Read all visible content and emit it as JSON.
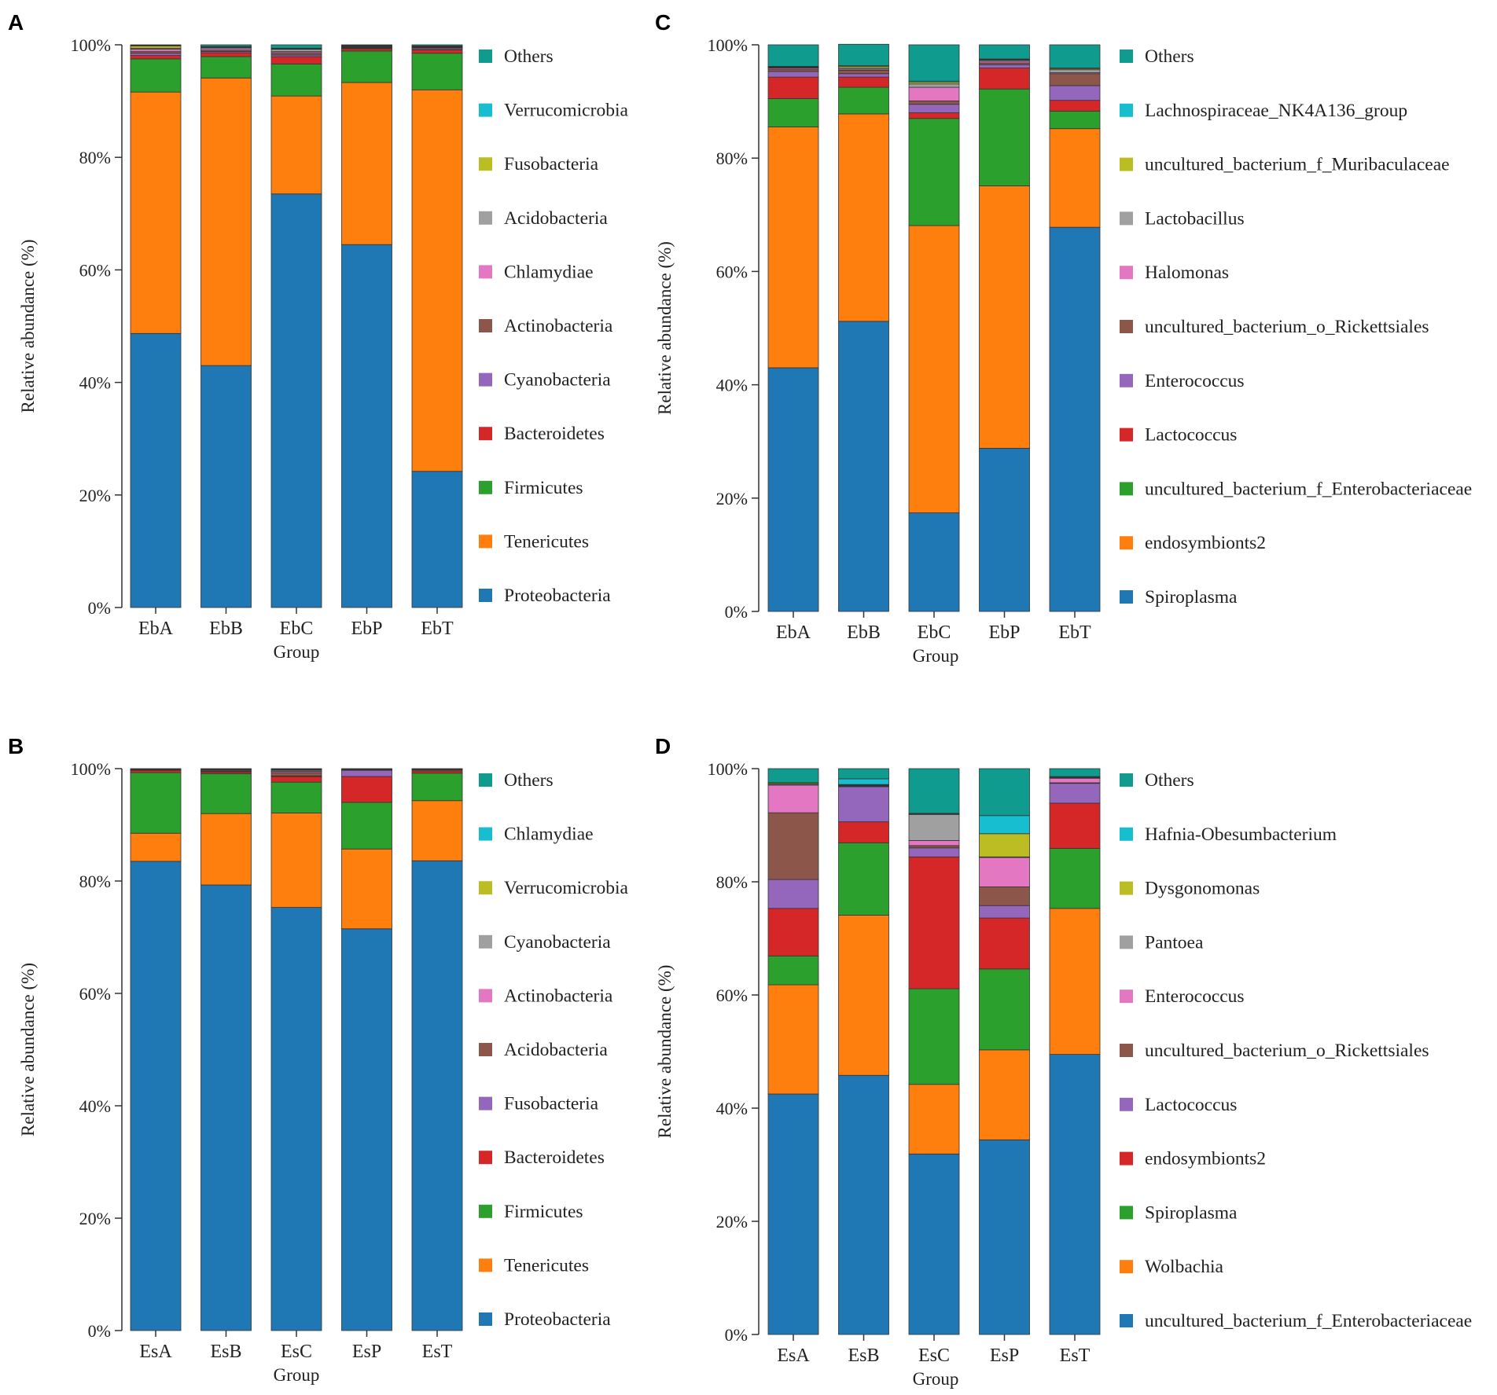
{
  "figure": {
    "panels": [
      "A",
      "B",
      "C",
      "D"
    ]
  },
  "colors": {
    "c0": "#1f77b4",
    "c1": "#ff7f0e",
    "c2": "#2ca02c",
    "c3": "#d62728",
    "c4": "#9467bd",
    "c5": "#8c564b",
    "c6": "#e377c2",
    "c7": "#a0a0a0",
    "c8": "#bcbd22",
    "c9": "#17becf",
    "c10": "#0f9b8e"
  },
  "chart_data": [
    {
      "panel": "A",
      "type": "bar",
      "stacked": true,
      "title": "",
      "xlabel": "Group",
      "ylabel": "Relative abundance (%)",
      "ylim": [
        0,
        100
      ],
      "yticks": [
        "0%",
        "20%",
        "40%",
        "60%",
        "80%",
        "100%"
      ],
      "categories": [
        "EbA",
        "EbB",
        "EbC",
        "EbP",
        "EbT"
      ],
      "series": [
        {
          "name": "Proteobacteria",
          "values": [
            48.7,
            43.0,
            73.5,
            64.5,
            24.2
          ]
        },
        {
          "name": "Tenericutes",
          "values": [
            42.9,
            51.1,
            17.4,
            28.8,
            67.8
          ]
        },
        {
          "name": "Firmicutes",
          "values": [
            5.9,
            3.8,
            5.7,
            5.6,
            6.5
          ]
        },
        {
          "name": "Bacteroidetes",
          "values": [
            0.6,
            0.7,
            1.3,
            0.4,
            0.6
          ]
        },
        {
          "name": "Cyanobacteria",
          "values": [
            0.4,
            0.2,
            0.3,
            0.1,
            0.2
          ]
        },
        {
          "name": "Actinobacteria",
          "values": [
            0.3,
            0.2,
            0.4,
            0.1,
            0.2
          ]
        },
        {
          "name": "Chlamydiae",
          "values": [
            0.4,
            0.3,
            0.2,
            0.1,
            0.1
          ]
        },
        {
          "name": "Acidobacteria",
          "values": [
            0.2,
            0.2,
            0.4,
            0.1,
            0.1
          ]
        },
        {
          "name": "Fusobacteria",
          "values": [
            0.4,
            0.1,
            0.1,
            0.1,
            0.1
          ]
        },
        {
          "name": "Verrucomicrobia",
          "values": [
            0.1,
            0.1,
            0.1,
            0.1,
            0.0
          ]
        },
        {
          "name": "Others",
          "values": [
            0.1,
            0.3,
            0.6,
            0.1,
            0.2
          ]
        }
      ]
    },
    {
      "panel": "B",
      "type": "bar",
      "stacked": true,
      "title": "",
      "xlabel": "Group",
      "ylabel": "Relative abundance (%)",
      "ylim": [
        0,
        100
      ],
      "yticks": [
        "0%",
        "20%",
        "40%",
        "60%",
        "80%",
        "100%"
      ],
      "categories": [
        "EsA",
        "EsB",
        "EsC",
        "EsP",
        "EsT"
      ],
      "series": [
        {
          "name": "Proteobacteria",
          "values": [
            83.5,
            79.3,
            75.3,
            71.5,
            83.6
          ]
        },
        {
          "name": "Tenericutes",
          "values": [
            5.0,
            12.7,
            16.8,
            14.2,
            10.7
          ]
        },
        {
          "name": "Firmicutes",
          "values": [
            10.8,
            7.1,
            5.5,
            8.3,
            4.9
          ]
        },
        {
          "name": "Bacteroidetes",
          "values": [
            0.4,
            0.3,
            1.0,
            4.6,
            0.4
          ]
        },
        {
          "name": "Fusobacteria",
          "values": [
            0.0,
            0.1,
            0.1,
            1.1,
            0.0
          ]
        },
        {
          "name": "Acidobacteria",
          "values": [
            0.1,
            0.2,
            0.6,
            0.1,
            0.2
          ]
        },
        {
          "name": "Actinobacteria",
          "values": [
            0.0,
            0.1,
            0.2,
            0.1,
            0.1
          ]
        },
        {
          "name": "Cyanobacteria",
          "values": [
            0.1,
            0.1,
            0.2,
            0.0,
            0.0
          ]
        },
        {
          "name": "Verrucomicrobia",
          "values": [
            0.0,
            0.0,
            0.1,
            0.0,
            0.0
          ]
        },
        {
          "name": "Chlamydiae",
          "values": [
            0.0,
            0.0,
            0.1,
            0.0,
            0.0
          ]
        },
        {
          "name": "Others",
          "values": [
            0.1,
            0.1,
            0.1,
            0.1,
            0.1
          ]
        }
      ]
    },
    {
      "panel": "C",
      "type": "bar",
      "stacked": true,
      "title": "",
      "xlabel": "Group",
      "ylabel": "Relative abundance (%)",
      "ylim": [
        0,
        100
      ],
      "yticks": [
        "0%",
        "20%",
        "40%",
        "60%",
        "80%",
        "100%"
      ],
      "categories": [
        "EbA",
        "EbB",
        "EbC",
        "EbP",
        "EbT"
      ],
      "series": [
        {
          "name": "Spiroplasma",
          "values": [
            43.0,
            51.2,
            17.4,
            28.8,
            67.8
          ]
        },
        {
          "name": "endosymbionts2",
          "values": [
            42.5,
            36.6,
            50.7,
            46.3,
            17.4
          ]
        },
        {
          "name": "uncultured_bacterium_f_Enterobacteriaceae",
          "values": [
            5.0,
            4.7,
            18.9,
            17.1,
            3.1
          ]
        },
        {
          "name": "Lactococcus",
          "values": [
            3.8,
            1.8,
            1.0,
            3.7,
            1.9
          ]
        },
        {
          "name": "Enterococcus",
          "values": [
            1.0,
            0.6,
            1.5,
            0.6,
            2.6
          ]
        },
        {
          "name": "uncultured_bacterium_o_Rickettsiales",
          "values": [
            0.4,
            0.6,
            0.6,
            0.3,
            2.1
          ]
        },
        {
          "name": "Halomonas",
          "values": [
            0.2,
            0.2,
            2.4,
            0.3,
            0.2
          ]
        },
        {
          "name": "Lactobacillus",
          "values": [
            0.1,
            0.2,
            0.6,
            0.2,
            0.5
          ]
        },
        {
          "name": "uncultured_bacterium_f_Muribaculaceae",
          "values": [
            0.1,
            0.3,
            0.3,
            0.1,
            0.2
          ]
        },
        {
          "name": "Lachnospiraceae_NK4A136_group",
          "values": [
            0.1,
            0.1,
            0.2,
            0.1,
            0.1
          ]
        },
        {
          "name": "Others",
          "values": [
            3.8,
            3.8,
            6.4,
            2.5,
            4.1
          ]
        }
      ]
    },
    {
      "panel": "D",
      "type": "bar",
      "stacked": true,
      "title": "",
      "xlabel": "Group",
      "ylabel": "Relative abundance (%)",
      "ylim": [
        0,
        100
      ],
      "yticks": [
        "0%",
        "20%",
        "40%",
        "60%",
        "80%",
        "100%"
      ],
      "categories": [
        "EsA",
        "EsB",
        "EsC",
        "EsP",
        "EsT"
      ],
      "series": [
        {
          "name": "uncultured_bacterium_f_Enterobacteriaceae",
          "values": [
            42.5,
            45.8,
            31.9,
            34.4,
            49.5
          ]
        },
        {
          "name": "Wolbachia",
          "values": [
            19.3,
            28.3,
            12.3,
            15.9,
            25.8
          ]
        },
        {
          "name": "Spiroplasma",
          "values": [
            5.1,
            12.8,
            16.9,
            14.3,
            10.6
          ]
        },
        {
          "name": "endosymbionts2",
          "values": [
            8.4,
            3.7,
            23.3,
            9.0,
            8.0
          ]
        },
        {
          "name": "Lactococcus",
          "values": [
            5.1,
            6.2,
            1.6,
            2.2,
            3.5
          ]
        },
        {
          "name": "uncultured_bacterium_o_Rickettsiales",
          "values": [
            11.8,
            0.1,
            0.4,
            3.3,
            0.1
          ]
        },
        {
          "name": "Enterococcus",
          "values": [
            4.9,
            0.1,
            0.9,
            5.2,
            0.8
          ]
        },
        {
          "name": "Pantoea",
          "values": [
            0.1,
            0.1,
            4.6,
            0.1,
            0.1
          ]
        },
        {
          "name": "Dysgonomonas",
          "values": [
            0.2,
            0.1,
            0.1,
            4.1,
            0.1
          ]
        },
        {
          "name": "Hafnia-Obesumbacterium",
          "values": [
            0.1,
            1.0,
            0.1,
            3.2,
            0.1
          ]
        },
        {
          "name": "Others",
          "values": [
            2.5,
            1.8,
            7.9,
            8.3,
            1.4
          ]
        }
      ]
    }
  ]
}
